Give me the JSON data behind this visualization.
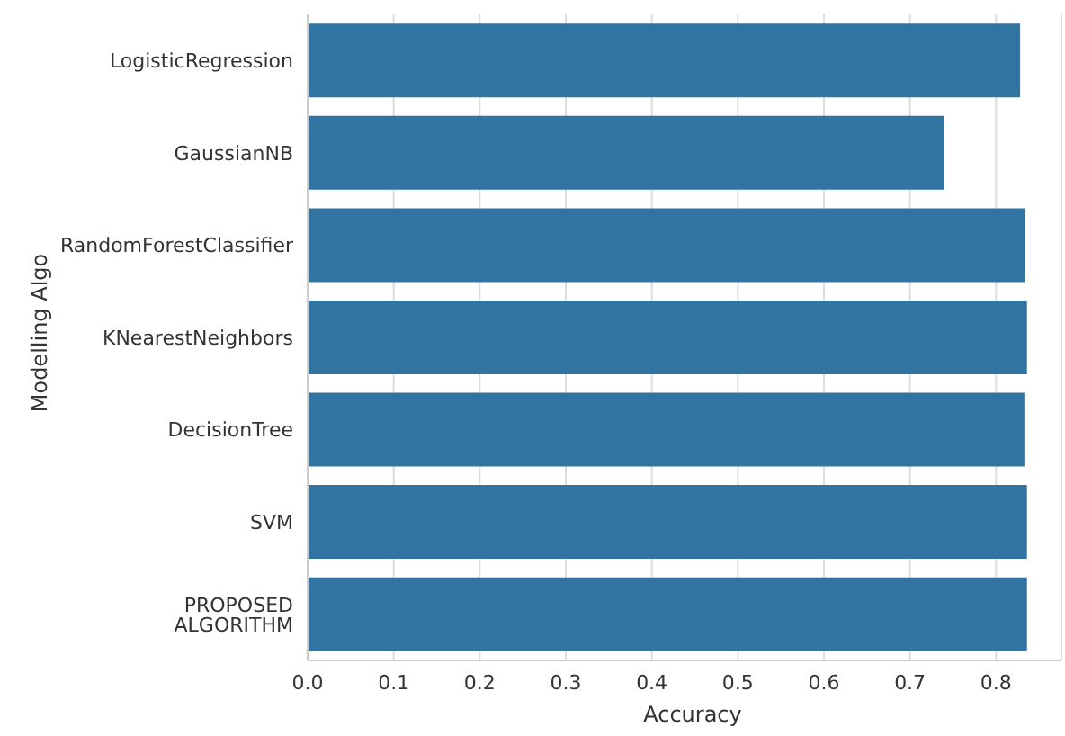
{
  "chart_data": {
    "type": "bar",
    "orientation": "horizontal",
    "xlabel": "Accuracy",
    "ylabel": "Modelling Algo",
    "categories": [
      "LogisticRegression",
      "GaussianNB",
      "RandomForestClassifier",
      "KNearestNeighbors",
      "DecisionTree",
      "SVM",
      "PROPOSED ALGORITHM"
    ],
    "values": [
      0.828,
      0.74,
      0.834,
      0.836,
      0.833,
      0.836,
      0.836
    ],
    "color": "#3274a1",
    "xlim": [
      0,
      0.876
    ],
    "xticks": [
      {
        "value": 0,
        "label": "0.0"
      },
      0.1,
      0.2,
      0.3,
      0.4,
      0.5,
      0.6,
      0.7,
      0.8
    ],
    "grid": "x"
  }
}
